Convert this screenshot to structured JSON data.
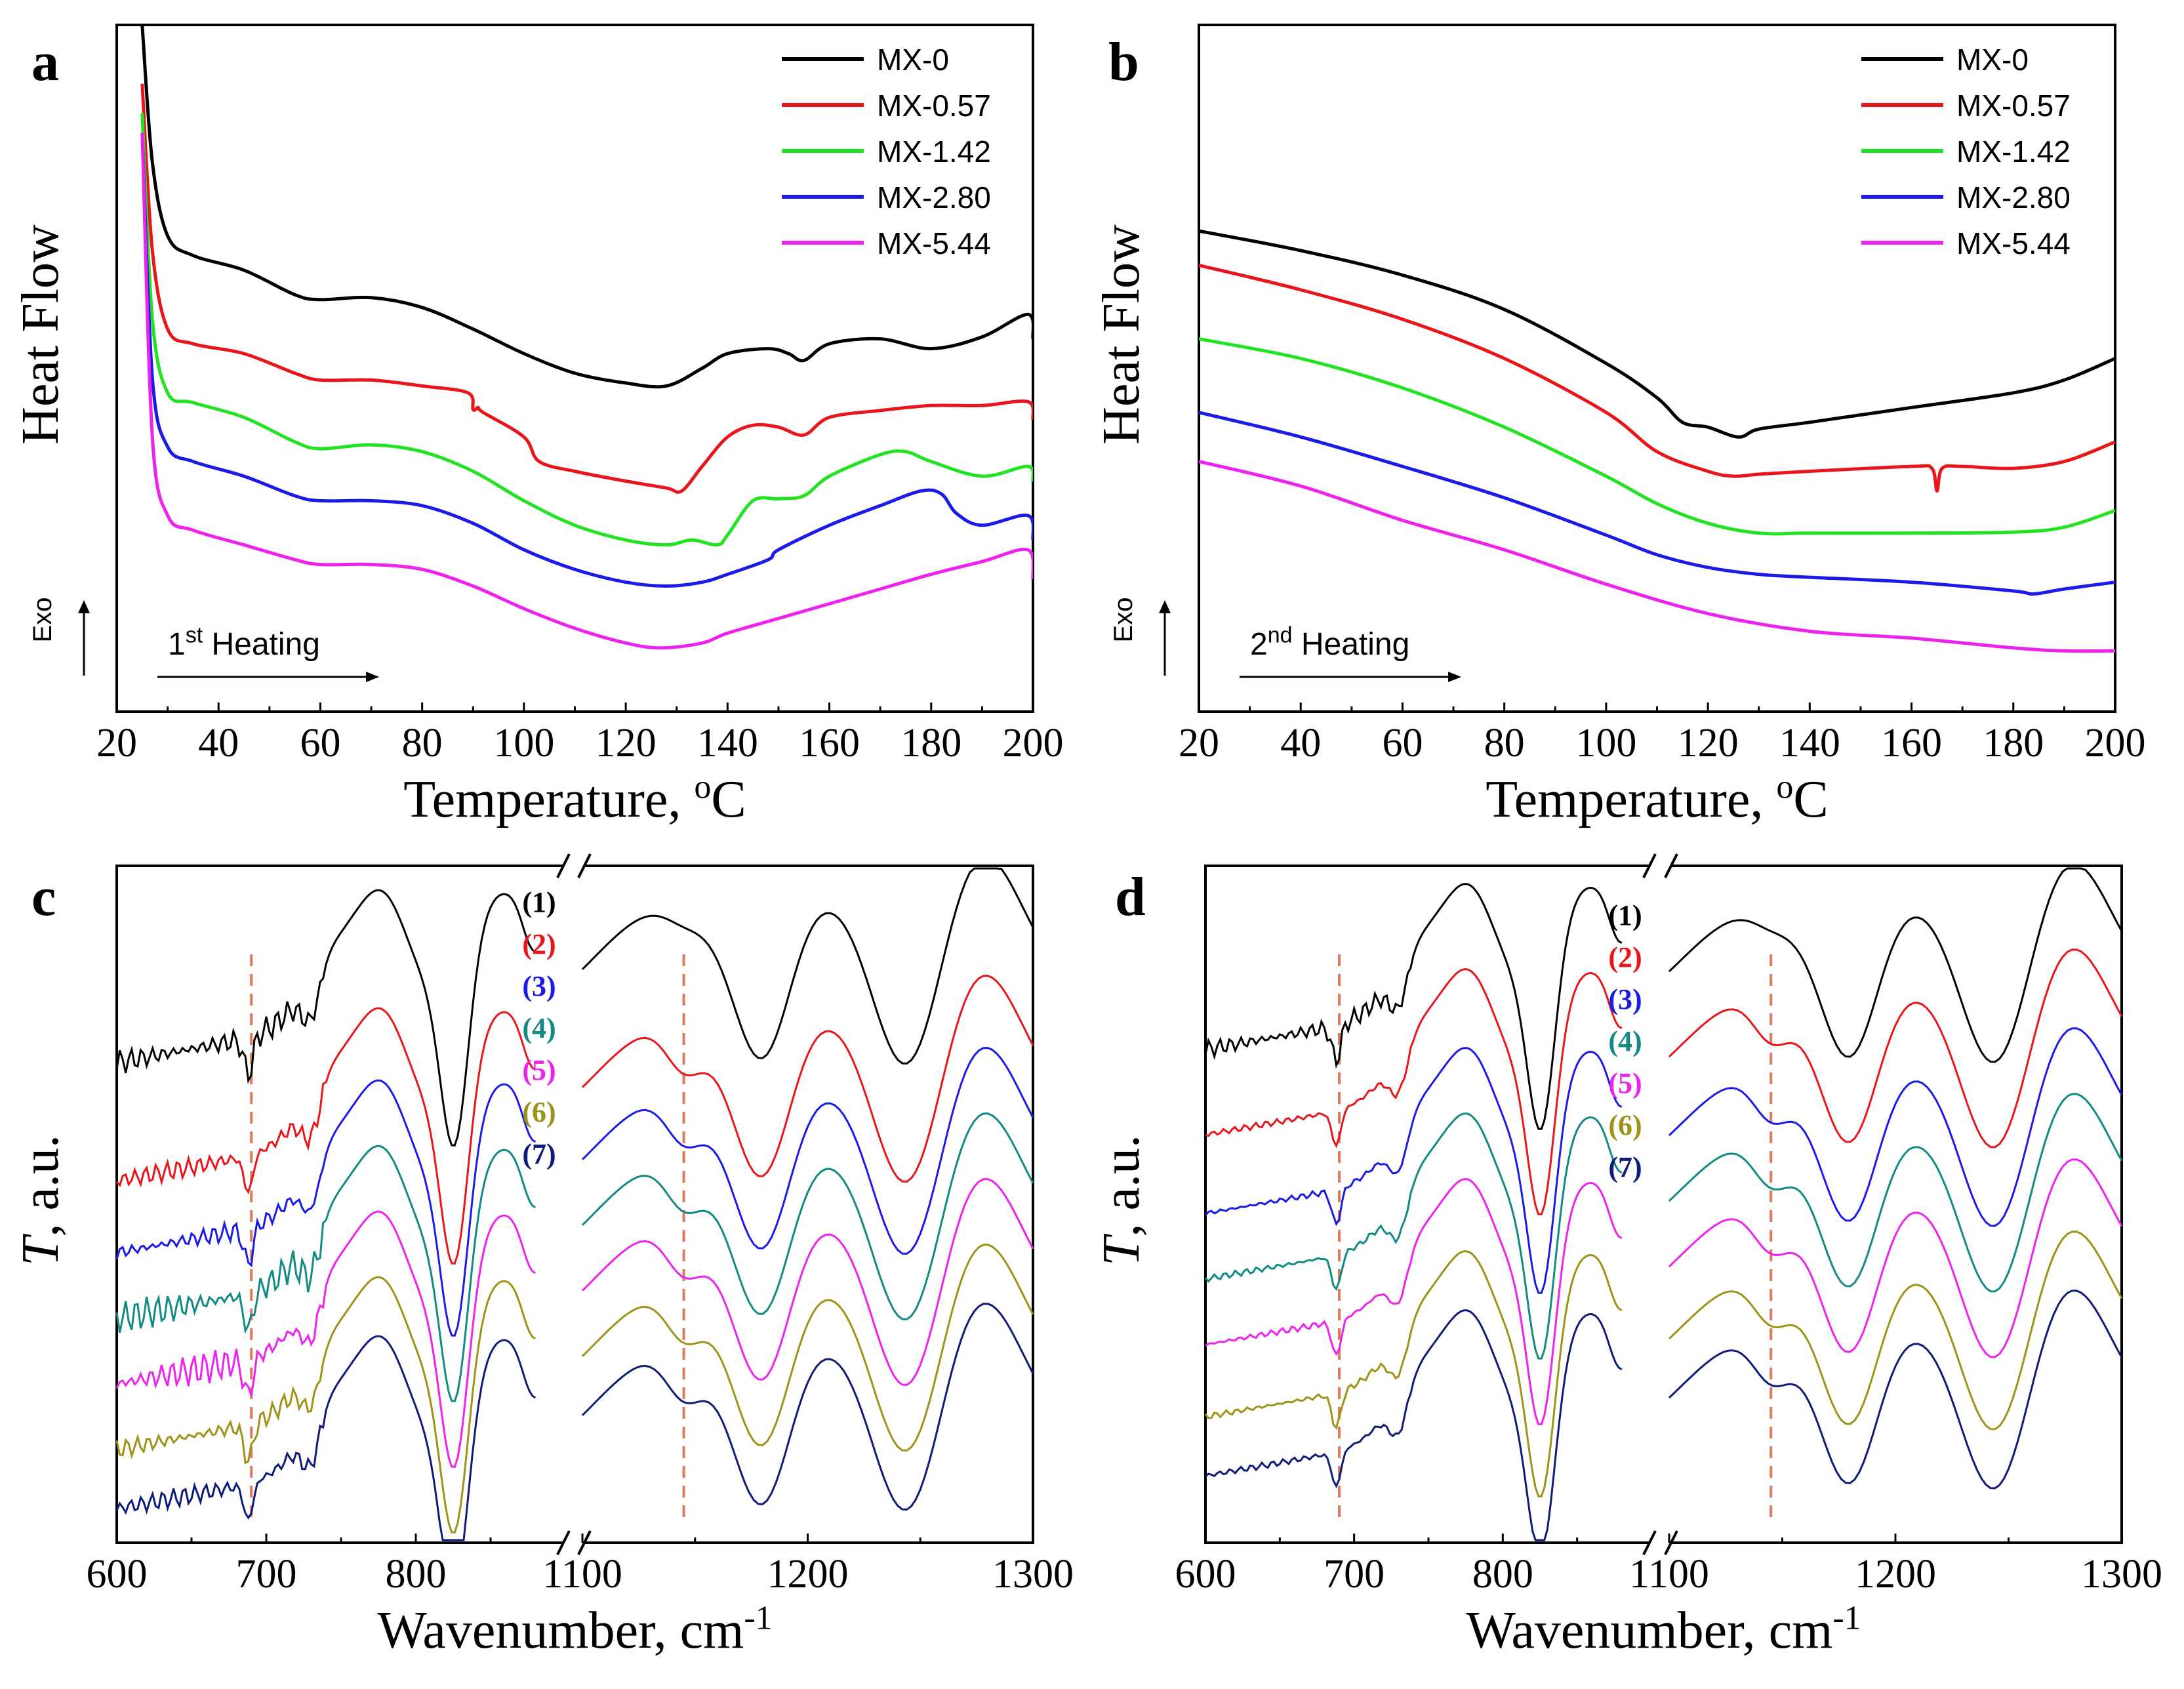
{
  "chart_data": [
    {
      "panel": "a",
      "type": "line",
      "xlabel": "Temperature, ",
      "xlabel_sup": "o",
      "xlabel_unit": "C",
      "ylabel": "Heat Flow",
      "exo_label": "Exo",
      "heating_label": "1",
      "heating_sup": "st",
      "heating_text": " Heating",
      "xlim": [
        20,
        200
      ],
      "xticks": [
        20,
        40,
        60,
        80,
        100,
        120,
        140,
        160,
        180,
        200
      ],
      "ylim": [
        -0.2,
        6.8
      ],
      "legend_position": "top-right",
      "series": [
        {
          "name": "MX-0",
          "color": "#000000",
          "x": [
            25,
            27,
            30,
            35,
            45,
            55,
            60,
            70,
            80,
            90,
            100,
            110,
            120,
            128,
            135,
            140,
            148,
            152,
            155,
            160,
            170,
            180,
            190,
            199,
            200
          ],
          "y": [
            6.8,
            5.4,
            4.65,
            4.45,
            4.3,
            4.05,
            4.0,
            4.02,
            3.92,
            3.7,
            3.45,
            3.25,
            3.15,
            3.12,
            3.3,
            3.45,
            3.5,
            3.45,
            3.38,
            3.55,
            3.6,
            3.5,
            3.62,
            3.85,
            3.6
          ]
        },
        {
          "name": "MX-0.57",
          "color": "#e8161b",
          "x": [
            25,
            27,
            30,
            35,
            45,
            55,
            60,
            70,
            80,
            89,
            90,
            91,
            92,
            100,
            103,
            110,
            120,
            128,
            131,
            135,
            140,
            145,
            150,
            155,
            160,
            170,
            180,
            190,
            199,
            200
          ],
          "y": [
            6.2,
            4.5,
            3.7,
            3.55,
            3.45,
            3.25,
            3.18,
            3.18,
            3.12,
            3.05,
            2.88,
            2.9,
            2.85,
            2.6,
            2.35,
            2.25,
            2.15,
            2.08,
            2.05,
            2.3,
            2.6,
            2.72,
            2.7,
            2.62,
            2.8,
            2.87,
            2.92,
            2.92,
            2.96,
            2.78
          ]
        },
        {
          "name": "MX-1.42",
          "color": "#22e222",
          "x": [
            25,
            27,
            30,
            35,
            45,
            55,
            60,
            70,
            80,
            90,
            100,
            110,
            120,
            128,
            133,
            138,
            140,
            145,
            150,
            155,
            160,
            170,
            175,
            180,
            190,
            199,
            200
          ],
          "y": [
            5.9,
            3.8,
            3.05,
            2.95,
            2.8,
            2.55,
            2.48,
            2.52,
            2.45,
            2.25,
            1.95,
            1.7,
            1.55,
            1.5,
            1.55,
            1.5,
            1.6,
            1.95,
            1.97,
            2.0,
            2.2,
            2.42,
            2.45,
            2.35,
            2.2,
            2.3,
            2.15
          ]
        },
        {
          "name": "MX-2.80",
          "color": "#1b1be8",
          "x": [
            25,
            27,
            30,
            35,
            45,
            55,
            60,
            70,
            80,
            90,
            100,
            110,
            120,
            128,
            135,
            140,
            148,
            150,
            160,
            170,
            178,
            182,
            185,
            190,
            199,
            200
          ],
          "y": [
            5.7,
            3.2,
            2.5,
            2.35,
            2.2,
            2.0,
            1.95,
            1.95,
            1.9,
            1.72,
            1.45,
            1.25,
            1.12,
            1.08,
            1.12,
            1.2,
            1.35,
            1.45,
            1.7,
            1.9,
            2.05,
            2.02,
            1.82,
            1.7,
            1.8,
            1.55
          ]
        },
        {
          "name": "MX-5.44",
          "color": "#ee22ee",
          "x": [
            25,
            27,
            30,
            35,
            45,
            55,
            60,
            70,
            80,
            90,
            100,
            110,
            120,
            127,
            135,
            140,
            150,
            160,
            170,
            180,
            190,
            199,
            200
          ],
          "y": [
            5.7,
            2.6,
            1.8,
            1.65,
            1.5,
            1.35,
            1.3,
            1.3,
            1.25,
            1.08,
            0.85,
            0.65,
            0.5,
            0.45,
            0.5,
            0.6,
            0.75,
            0.9,
            1.05,
            1.2,
            1.33,
            1.45,
            1.15
          ]
        }
      ]
    },
    {
      "panel": "b",
      "type": "line",
      "xlabel": "Temperature, ",
      "xlabel_sup": "o",
      "xlabel_unit": "C",
      "ylabel": "Heat Flow",
      "exo_label": "Exo",
      "heating_label": "2",
      "heating_sup": "nd",
      "heating_text": " Heating",
      "xlim": [
        20,
        200
      ],
      "xticks": [
        20,
        40,
        60,
        80,
        100,
        120,
        140,
        160,
        180,
        200
      ],
      "ylim": [
        -0.2,
        6.8
      ],
      "legend_position": "top-right",
      "series": [
        {
          "name": "MX-0",
          "color": "#000000",
          "x": [
            20,
            40,
            60,
            80,
            100,
            110,
            115,
            120,
            126,
            130,
            140,
            160,
            180,
            190,
            200
          ],
          "y": [
            4.7,
            4.5,
            4.25,
            3.9,
            3.35,
            3.0,
            2.75,
            2.7,
            2.6,
            2.68,
            2.75,
            2.9,
            3.05,
            3.18,
            3.4
          ]
        },
        {
          "name": "MX-0.57",
          "color": "#e8161b",
          "x": [
            20,
            40,
            60,
            80,
            100,
            110,
            120,
            125,
            130,
            140,
            160,
            164,
            165,
            166,
            170,
            180,
            190,
            200
          ],
          "y": [
            4.35,
            4.1,
            3.8,
            3.4,
            2.85,
            2.45,
            2.25,
            2.2,
            2.22,
            2.25,
            2.3,
            2.28,
            2.05,
            2.28,
            2.3,
            2.28,
            2.35,
            2.55
          ]
        },
        {
          "name": "MX-1.42",
          "color": "#22e222",
          "x": [
            20,
            40,
            60,
            80,
            100,
            110,
            120,
            130,
            140,
            160,
            180,
            190,
            200
          ],
          "y": [
            3.6,
            3.4,
            3.1,
            2.7,
            2.2,
            1.92,
            1.72,
            1.62,
            1.62,
            1.62,
            1.63,
            1.68,
            1.85
          ]
        },
        {
          "name": "MX-2.80",
          "color": "#1b1be8",
          "x": [
            20,
            40,
            60,
            80,
            100,
            110,
            120,
            130,
            140,
            160,
            180,
            184,
            190,
            200
          ],
          "y": [
            2.85,
            2.6,
            2.3,
            1.98,
            1.6,
            1.4,
            1.27,
            1.2,
            1.17,
            1.12,
            1.03,
            1.0,
            1.05,
            1.12
          ]
        },
        {
          "name": "MX-5.44",
          "color": "#ee22ee",
          "x": [
            20,
            40,
            60,
            80,
            100,
            120,
            140,
            160,
            180,
            190,
            200
          ],
          "y": [
            2.35,
            2.1,
            1.75,
            1.45,
            1.1,
            0.8,
            0.62,
            0.55,
            0.45,
            0.42,
            0.42
          ]
        }
      ]
    },
    {
      "panel": "c",
      "type": "line",
      "xlabel": "Wavenumber, cm",
      "xlabel_sup": "-1",
      "ylabel_italic": "T",
      "ylabel_rest": ", a.u.",
      "x_segments": [
        [
          600,
          900
        ],
        [
          1100,
          1300
        ]
      ],
      "xticks_left": [
        600,
        700,
        800
      ],
      "xticks_right": [
        1100,
        1200,
        1300
      ],
      "dashed_lines": [
        690,
        1145
      ],
      "labels": [
        "(1)",
        "(2)",
        "(3)",
        "(4)",
        "(5)",
        "(6)",
        "(7)"
      ],
      "series_colors": [
        "#000000",
        "#e8161b",
        "#1b1be8",
        "#128a82",
        "#ee22ee",
        "#9c9318",
        "#0f1b78"
      ]
    },
    {
      "panel": "d",
      "type": "line",
      "xlabel": "Wavenumber, cm",
      "xlabel_sup": "-1",
      "ylabel_italic": "T",
      "ylabel_rest": ", a.u.",
      "x_segments": [
        [
          600,
          900
        ],
        [
          1100,
          1300
        ]
      ],
      "xticks_left": [
        600,
        700,
        800
      ],
      "xticks_right": [
        1100,
        1200,
        1300
      ],
      "dashed_lines": [
        690,
        1145
      ],
      "labels": [
        "(1)",
        "(2)",
        "(3)",
        "(4)",
        "(5)",
        "(6)",
        "(7)"
      ],
      "series_colors": [
        "#000000",
        "#e8161b",
        "#1b1be8",
        "#128a82",
        "#ee22ee",
        "#9c9318",
        "#0f1b78"
      ]
    }
  ]
}
